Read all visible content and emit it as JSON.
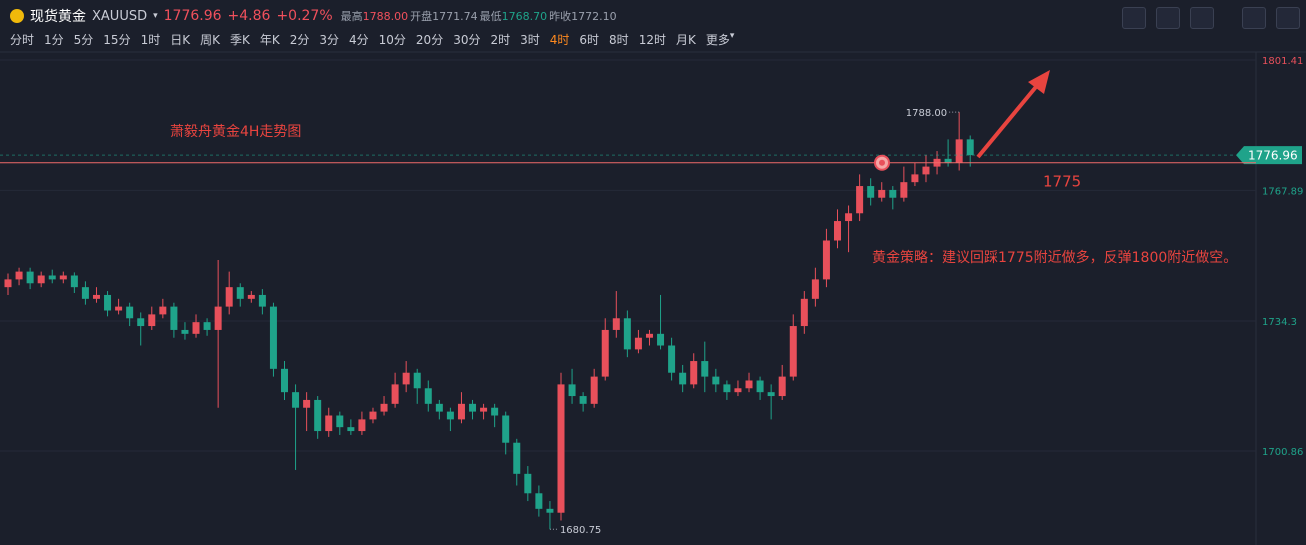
{
  "header": {
    "name": "现货黄金",
    "symbol": "XAUUSD",
    "price": "1776.96",
    "change": "+4.86",
    "change_pct": "+0.27%",
    "stats": [
      {
        "label": "最高",
        "value": "1788.00"
      },
      {
        "label": "开盘",
        "value": "1771.74"
      },
      {
        "label": "最低",
        "value": "1768.70"
      },
      {
        "label": "昨收",
        "value": "1772.10"
      }
    ]
  },
  "timeframes": [
    "分时",
    "1分",
    "5分",
    "15分",
    "1时",
    "日K",
    "周K",
    "季K",
    "年K",
    "2分",
    "3分",
    "4分",
    "10分",
    "20分",
    "30分",
    "2时",
    "3时",
    "4时",
    "6时",
    "8时",
    "12时",
    "月K"
  ],
  "active_timeframe": "4时",
  "more": "更多",
  "chart_data": {
    "type": "candlestick",
    "title": "萧毅舟黄金4H走势图",
    "strategy": "黄金策略：建议回踩1775附近做多，反弹1800附近做空。",
    "support": 1775,
    "last_price": 1776.96,
    "max_label": {
      "value": 1788,
      "label": "1788.00"
    },
    "min_label": 1680.75,
    "up_color": "#e8505b",
    "down_color": "#1fa38a",
    "ylim": [
      1676.7,
      1805.27
    ],
    "yticks": [
      1700.86,
      1734.3,
      1767.89,
      1801.41
    ],
    "ohlc": [
      [
        1743,
        1746.5,
        1741,
        1745
      ],
      [
        1745,
        1748,
        1743.5,
        1747
      ],
      [
        1747,
        1748,
        1742.5,
        1744
      ],
      [
        1744,
        1747,
        1743,
        1746
      ],
      [
        1746,
        1747.5,
        1744,
        1745
      ],
      [
        1745,
        1747,
        1744,
        1746
      ],
      [
        1746,
        1746.8,
        1741.5,
        1743
      ],
      [
        1743,
        1744.5,
        1738.5,
        1740
      ],
      [
        1740,
        1743,
        1739,
        1741
      ],
      [
        1741,
        1742,
        1735.5,
        1737
      ],
      [
        1737,
        1740,
        1736,
        1738
      ],
      [
        1738,
        1739,
        1733,
        1735
      ],
      [
        1735,
        1736.5,
        1728,
        1733
      ],
      [
        1733,
        1738,
        1732,
        1736
      ],
      [
        1736,
        1740,
        1735,
        1738
      ],
      [
        1738,
        1739,
        1730,
        1732
      ],
      [
        1732,
        1734,
        1729.5,
        1731
      ],
      [
        1731,
        1736,
        1730,
        1734
      ],
      [
        1734,
        1735,
        1730.5,
        1732
      ],
      [
        1732,
        1750,
        1712,
        1738
      ],
      [
        1738,
        1747,
        1736,
        1743
      ],
      [
        1743,
        1744,
        1738,
        1740
      ],
      [
        1740,
        1742,
        1739,
        1741
      ],
      [
        1741,
        1742.5,
        1736,
        1738
      ],
      [
        1738,
        1739,
        1720,
        1722
      ],
      [
        1722,
        1724,
        1714,
        1716
      ],
      [
        1716,
        1718,
        1696,
        1712
      ],
      [
        1712,
        1716,
        1706,
        1714
      ],
      [
        1714,
        1715,
        1704,
        1706
      ],
      [
        1706,
        1712,
        1704.5,
        1710
      ],
      [
        1710,
        1711,
        1705,
        1707
      ],
      [
        1707,
        1709,
        1705,
        1706
      ],
      [
        1706,
        1711,
        1705,
        1709
      ],
      [
        1709,
        1712,
        1708,
        1711
      ],
      [
        1711,
        1715,
        1710,
        1713
      ],
      [
        1713,
        1721,
        1712,
        1718
      ],
      [
        1718,
        1724,
        1716,
        1721
      ],
      [
        1721,
        1722,
        1713,
        1717
      ],
      [
        1717,
        1719,
        1711,
        1713
      ],
      [
        1713,
        1714,
        1709,
        1711
      ],
      [
        1711,
        1712,
        1706,
        1709
      ],
      [
        1709,
        1716,
        1708,
        1713
      ],
      [
        1713,
        1714,
        1709,
        1711
      ],
      [
        1711,
        1713,
        1709,
        1712
      ],
      [
        1712,
        1713,
        1707,
        1710
      ],
      [
        1710,
        1711,
        1700,
        1703
      ],
      [
        1703,
        1704,
        1692,
        1695
      ],
      [
        1695,
        1697,
        1688,
        1690
      ],
      [
        1690,
        1692,
        1684,
        1686
      ],
      [
        1686,
        1688,
        1680.75,
        1685
      ],
      [
        1685,
        1721,
        1683,
        1718
      ],
      [
        1718,
        1722,
        1713,
        1715
      ],
      [
        1715,
        1716,
        1711,
        1713
      ],
      [
        1713,
        1722,
        1712,
        1720
      ],
      [
        1720,
        1735,
        1719,
        1732
      ],
      [
        1732,
        1742,
        1730,
        1735
      ],
      [
        1735,
        1737,
        1725,
        1727
      ],
      [
        1727,
        1732,
        1726,
        1730
      ],
      [
        1730,
        1732,
        1728,
        1731
      ],
      [
        1731,
        1741,
        1727,
        1728
      ],
      [
        1728,
        1730,
        1719,
        1721
      ],
      [
        1721,
        1723,
        1716,
        1718
      ],
      [
        1718,
        1726,
        1717,
        1724
      ],
      [
        1724,
        1729,
        1716,
        1720
      ],
      [
        1720,
        1722,
        1716,
        1718
      ],
      [
        1718,
        1719,
        1714,
        1716
      ],
      [
        1716,
        1719,
        1715,
        1717
      ],
      [
        1717,
        1721,
        1716,
        1719
      ],
      [
        1719,
        1720,
        1714,
        1716
      ],
      [
        1716,
        1718,
        1709,
        1715
      ],
      [
        1715,
        1723,
        1714,
        1720
      ],
      [
        1720,
        1736,
        1719,
        1733
      ],
      [
        1733,
        1742,
        1731,
        1740
      ],
      [
        1740,
        1748,
        1738,
        1745
      ],
      [
        1745,
        1758,
        1743,
        1755
      ],
      [
        1755,
        1763,
        1753,
        1760
      ],
      [
        1760,
        1764,
        1752,
        1762
      ],
      [
        1762,
        1772,
        1760,
        1769
      ],
      [
        1769,
        1771,
        1764,
        1766
      ],
      [
        1766,
        1770,
        1765,
        1768
      ],
      [
        1768,
        1769,
        1763,
        1766
      ],
      [
        1766,
        1774,
        1765,
        1770
      ],
      [
        1770,
        1775,
        1769,
        1772
      ],
      [
        1772,
        1777,
        1770,
        1774
      ],
      [
        1774,
        1778,
        1772,
        1776
      ],
      [
        1776,
        1781,
        1774,
        1775
      ],
      [
        1775,
        1788,
        1773,
        1781
      ],
      [
        1781,
        1782,
        1774,
        1776.96
      ]
    ]
  }
}
